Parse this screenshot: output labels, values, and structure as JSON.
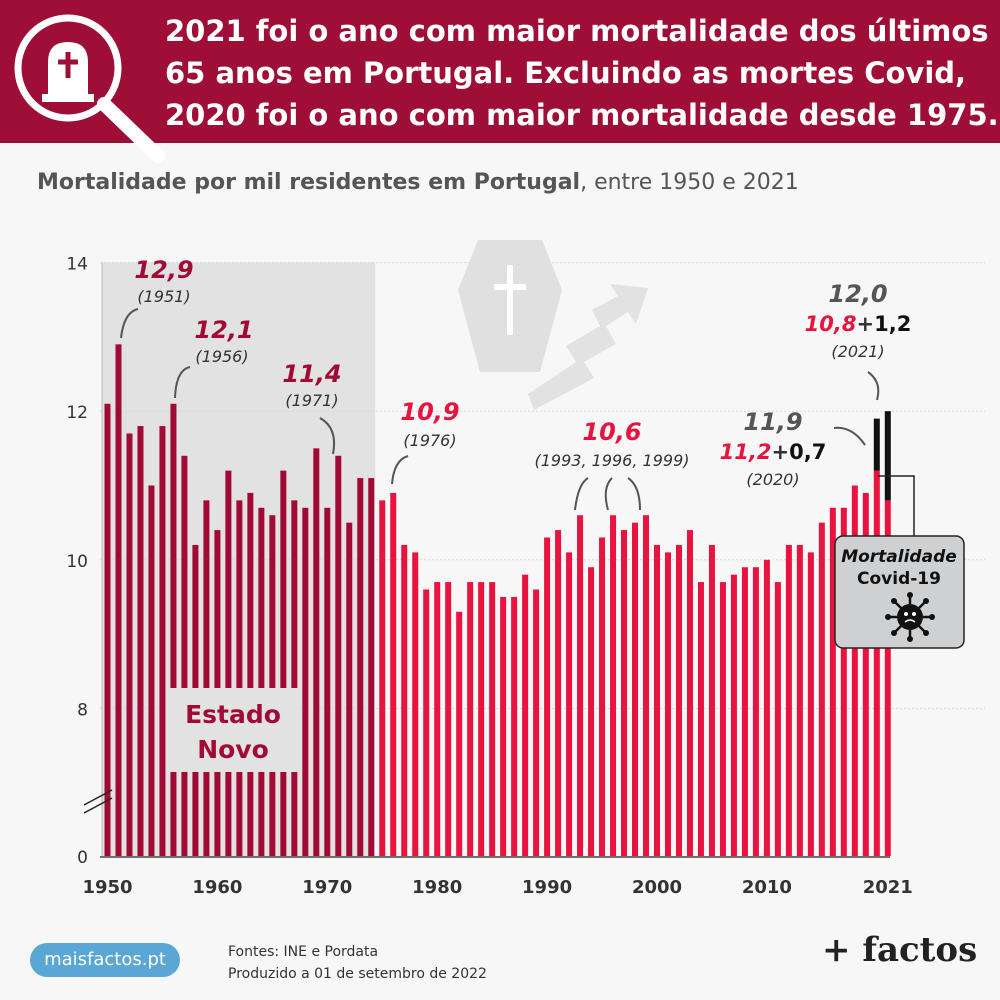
{
  "header": {
    "line1": "2021 foi o ano com maior mortalidade dos últimos",
    "line2": "65 anos em Portugal. Excluindo as mortes Covid,",
    "line3": "2020 foi o ano com maior mortalidade desde 1975."
  },
  "subtitle": {
    "bold": "Mortalidade por mil residentes em Portugal",
    "rest": ", entre 1950 e 2021"
  },
  "colors": {
    "estado_novo": "#a10a35",
    "after": "#e8133f",
    "covid": "#111111",
    "banner": "#9e0e36"
  },
  "chart_data": {
    "type": "bar",
    "x": [
      1950,
      1951,
      1952,
      1953,
      1954,
      1955,
      1956,
      1957,
      1958,
      1959,
      1960,
      1961,
      1962,
      1963,
      1964,
      1965,
      1966,
      1967,
      1968,
      1969,
      1970,
      1971,
      1972,
      1973,
      1974,
      1975,
      1976,
      1977,
      1978,
      1979,
      1980,
      1981,
      1982,
      1983,
      1984,
      1985,
      1986,
      1987,
      1988,
      1989,
      1990,
      1991,
      1992,
      1993,
      1994,
      1995,
      1996,
      1997,
      1998,
      1999,
      2000,
      2001,
      2002,
      2003,
      2004,
      2005,
      2006,
      2007,
      2008,
      2009,
      2010,
      2011,
      2012,
      2013,
      2014,
      2015,
      2016,
      2017,
      2018,
      2019,
      2020,
      2021
    ],
    "series": [
      {
        "values": [
          12.1,
          12.9,
          11.7,
          11.8,
          11.0,
          11.8,
          12.1,
          11.4,
          10.2,
          10.8,
          10.4,
          11.2,
          10.8,
          10.9,
          10.7,
          10.6,
          11.2,
          10.8,
          10.7,
          11.5,
          10.7,
          11.4,
          10.5,
          11.1,
          11.1,
          10.8,
          10.9,
          10.2,
          10.1,
          9.6,
          9.7,
          9.7,
          9.3,
          9.7,
          9.7,
          9.7,
          9.5,
          9.5,
          9.8,
          9.6,
          10.3,
          10.4,
          10.1,
          10.6,
          9.9,
          10.3,
          10.6,
          10.4,
          10.5,
          10.6,
          10.2,
          10.1,
          10.2,
          10.4,
          9.7,
          10.2,
          9.7,
          9.8,
          9.9,
          9.9,
          10.0,
          9.7,
          10.2,
          10.2,
          10.1,
          10.5,
          10.7,
          10.7,
          11.0,
          10.9,
          11.2,
          10.8
        ]
      },
      {
        "name": "Mortalidade Covid-19",
        "values": [
          0,
          0,
          0,
          0,
          0,
          0,
          0,
          0,
          0,
          0,
          0,
          0,
          0,
          0,
          0,
          0,
          0,
          0,
          0,
          0,
          0,
          0,
          0,
          0,
          0,
          0,
          0,
          0,
          0,
          0,
          0,
          0,
          0,
          0,
          0,
          0,
          0,
          0,
          0,
          0,
          0,
          0,
          0,
          0,
          0,
          0,
          0,
          0,
          0,
          0,
          0,
          0,
          0,
          0,
          0,
          0,
          0,
          0,
          0,
          0,
          0,
          0,
          0,
          0,
          0,
          0,
          0,
          0,
          0,
          0,
          0.7,
          1.2
        ]
      }
    ],
    "yticks": [
      {
        "value": 0,
        "label": "0"
      },
      {
        "value": 8,
        "label": "8"
      },
      {
        "value": 10,
        "label": "10"
      },
      {
        "value": 12,
        "label": "12"
      },
      {
        "value": 14,
        "label": "14"
      }
    ],
    "xticks": [
      "1950",
      "1960",
      "1970",
      "1980",
      "1990",
      "2000",
      "2010",
      "2021"
    ],
    "ylim": [
      0,
      14
    ],
    "axis_break": true,
    "shaded_period": {
      "start": 1950,
      "end": 1974,
      "label_line1": "Estado",
      "label_line2": "Novo"
    },
    "annotations": [
      {
        "value": "12,9",
        "year": "(1951)"
      },
      {
        "value": "12,1",
        "year": "(1956)"
      },
      {
        "value": "11,4",
        "year": "(1971)"
      },
      {
        "value": "10,9",
        "year": "(1976)"
      },
      {
        "value": "10,6",
        "year": "(1993, 1996, 1999)"
      }
    ],
    "total_2020": {
      "total": "11,9",
      "base": "11,2",
      "plus": "+",
      "covid": "0,7",
      "year": "(2020)"
    },
    "total_2021": {
      "total": "12,0",
      "base": "10,8",
      "plus": "+",
      "covid": "1,2",
      "year": "(2021)"
    },
    "covid_legend": {
      "line1": "Mortalidade",
      "line2": "Covid-19"
    }
  },
  "footer": {
    "site": "maisfactos.pt",
    "sources": "Fontes: INE e Pordata",
    "produced": "Produzido a 01 de setembro de 2022",
    "brand": "+ factos"
  },
  "icons": [
    "tombstone-magnifier-icon",
    "coffin-icon",
    "rising-arrow-icon",
    "virus-icon"
  ]
}
